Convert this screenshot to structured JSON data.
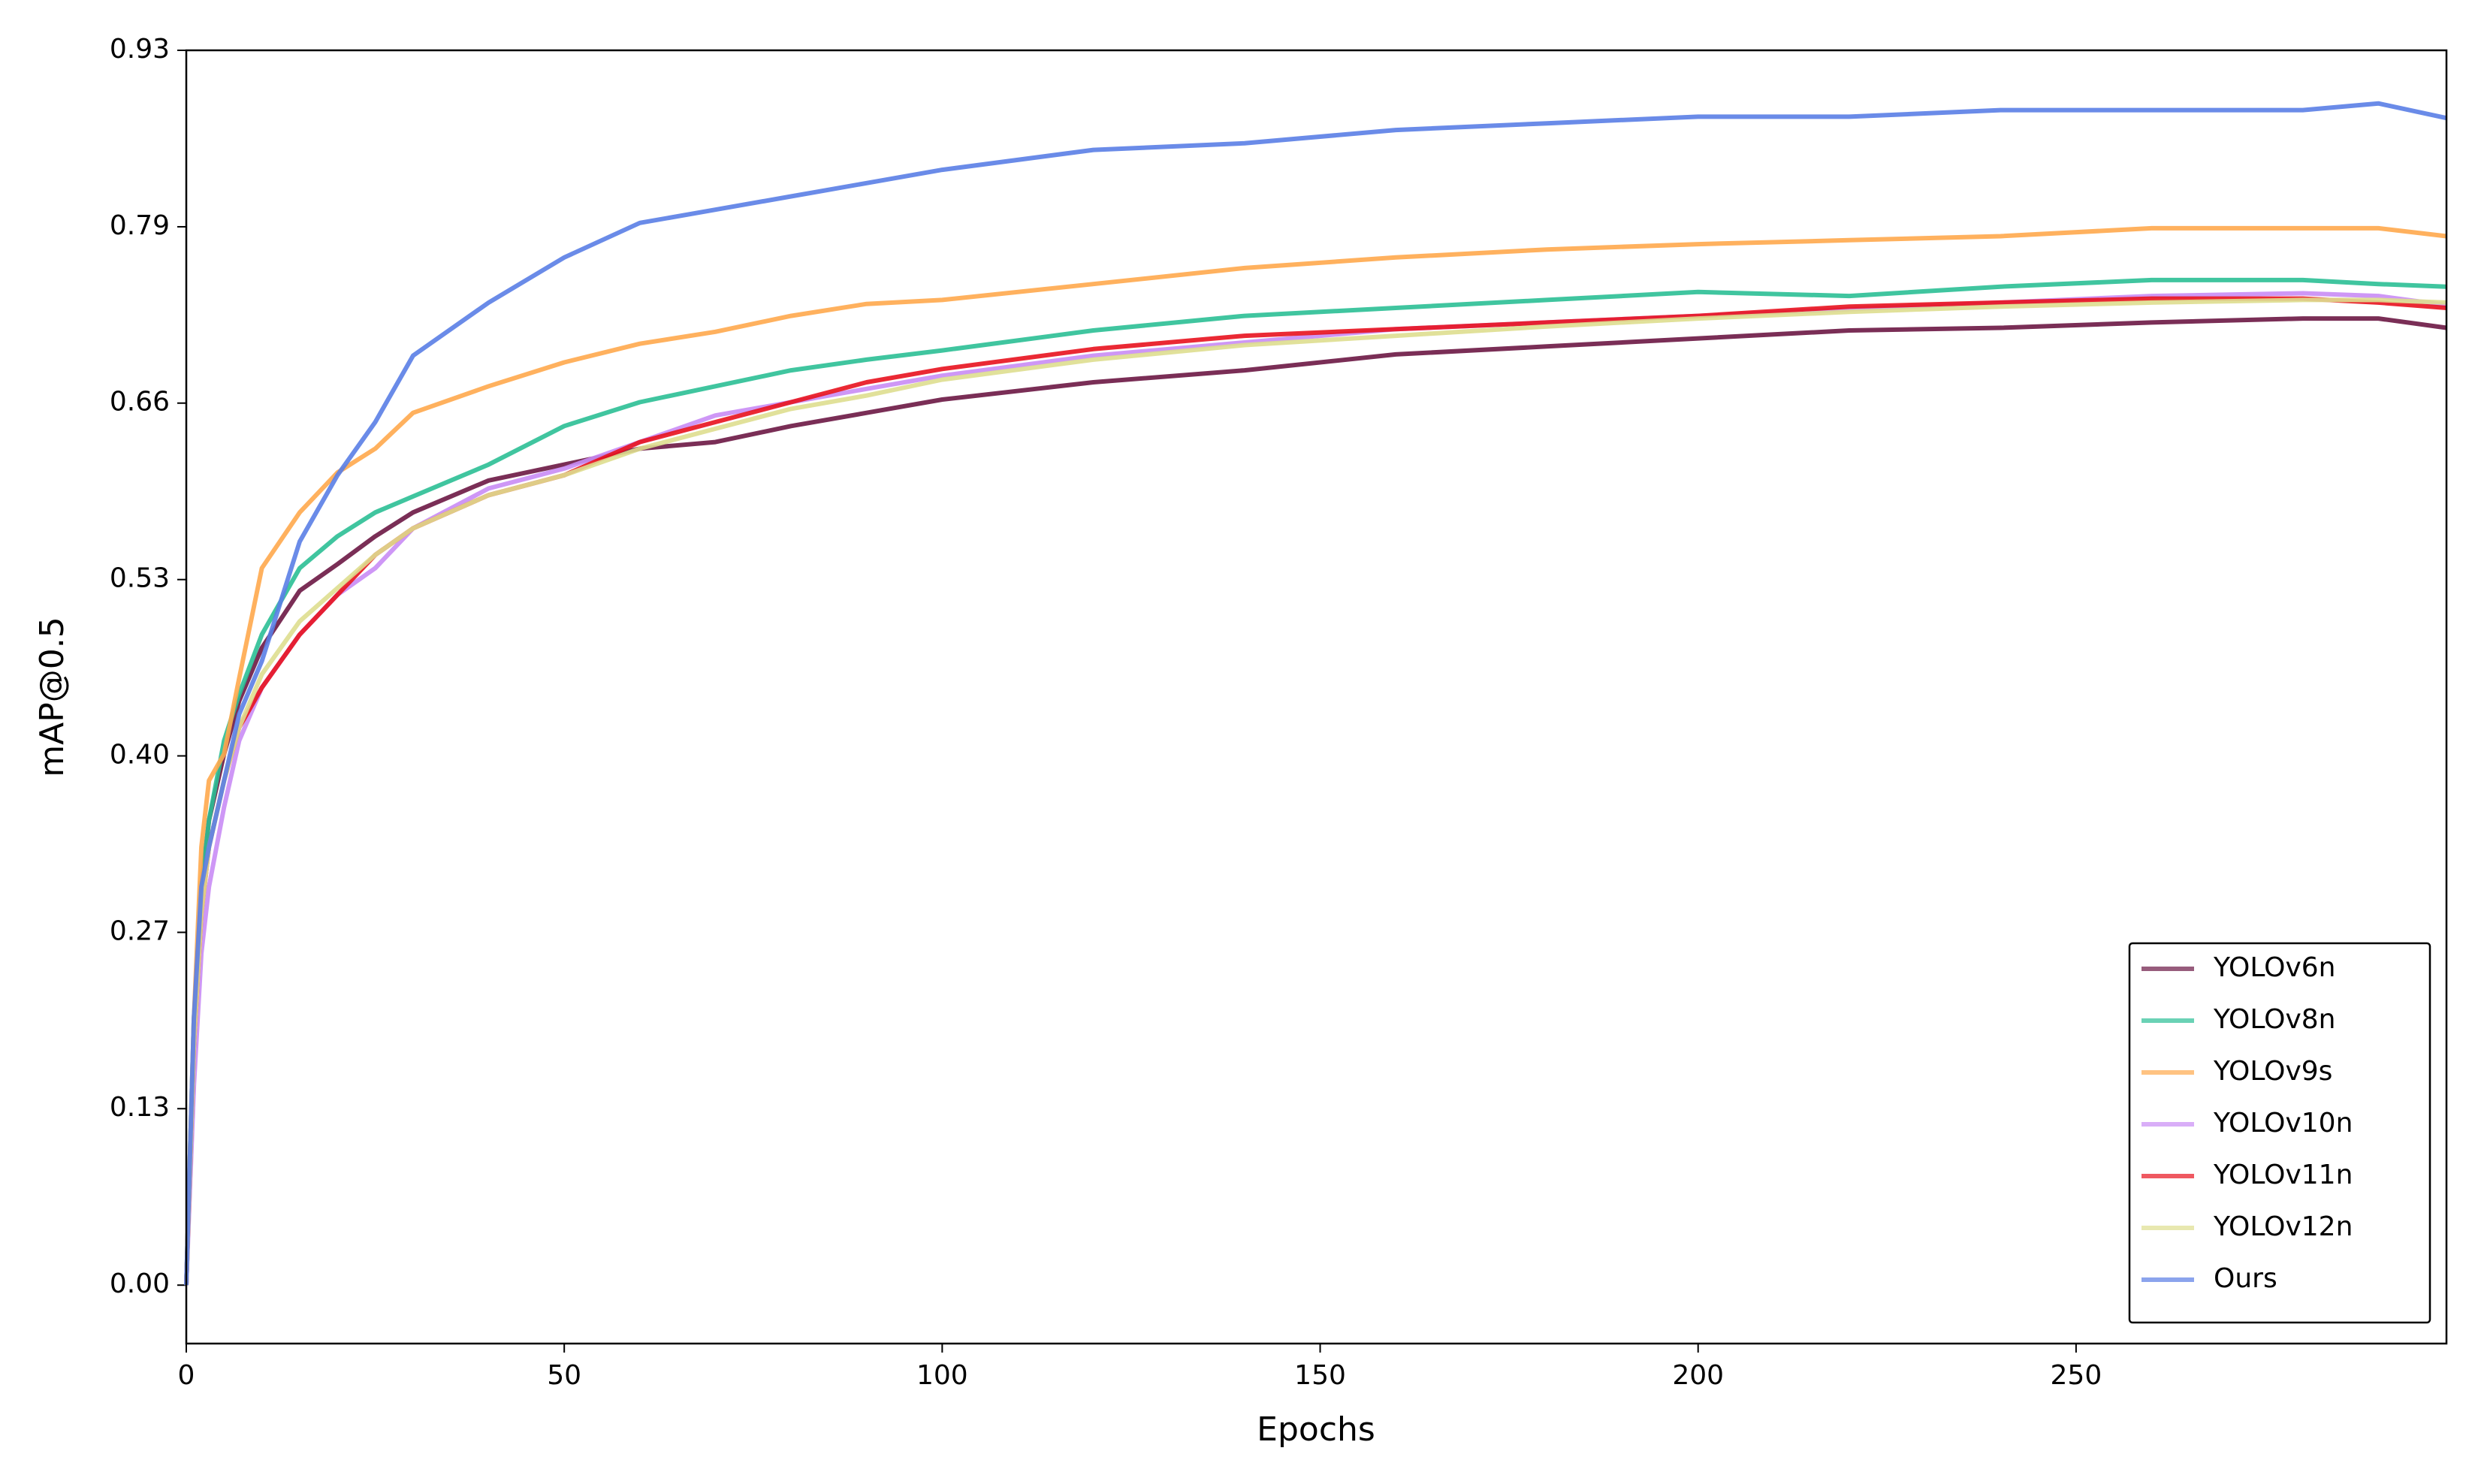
{
  "chart_data": {
    "type": "line",
    "x_label": "Epochs",
    "y_label": "mAP@0.5",
    "xlim": [
      0,
      299
    ],
    "ylim": [
      -0.044,
      0.93
    ],
    "xticks": [
      0,
      50,
      100,
      150,
      200,
      250
    ],
    "yticks": [
      {
        "value": 0,
        "label": "0.00"
      },
      {
        "value": 0.1329,
        "label": "0.13"
      },
      {
        "value": 0.2657,
        "label": "0.27"
      },
      {
        "value": 0.3986,
        "label": "0.40"
      },
      {
        "value": 0.5314,
        "label": "0.53"
      },
      {
        "value": 0.6643,
        "label": "0.66"
      },
      {
        "value": 0.7971,
        "label": "0.79"
      },
      {
        "value": 0.93,
        "label": "0.93"
      }
    ],
    "grid": false,
    "legend": "lower right",
    "x": [
      0,
      1,
      2,
      3,
      5,
      7,
      10,
      15,
      20,
      25,
      30,
      40,
      50,
      60,
      70,
      80,
      90,
      100,
      120,
      140,
      160,
      180,
      200,
      220,
      240,
      260,
      280,
      290,
      299
    ],
    "series": [
      {
        "name": "YOLOv6n",
        "color": "#6b1744",
        "values": [
          0,
          0.18,
          0.3,
          0.35,
          0.4,
          0.44,
          0.48,
          0.523,
          0.543,
          0.564,
          0.582,
          0.606,
          0.618,
          0.63,
          0.635,
          0.647,
          0.657,
          0.667,
          0.68,
          0.689,
          0.701,
          0.707,
          0.713,
          0.719,
          0.721,
          0.725,
          0.728,
          0.728,
          0.721
        ]
      },
      {
        "name": "YOLOv8n",
        "color": "#2bbf95",
        "values": [
          0,
          0.2,
          0.3,
          0.35,
          0.41,
          0.445,
          0.49,
          0.54,
          0.564,
          0.582,
          0.594,
          0.618,
          0.647,
          0.665,
          0.677,
          0.689,
          0.697,
          0.704,
          0.719,
          0.73,
          0.736,
          0.742,
          0.748,
          0.745,
          0.752,
          0.757,
          0.757,
          0.754,
          0.752
        ]
      },
      {
        "name": "YOLOv9s",
        "color": "#ffa94d",
        "values": [
          0,
          0.2,
          0.33,
          0.38,
          0.4,
          0.457,
          0.54,
          0.582,
          0.612,
          0.63,
          0.657,
          0.677,
          0.695,
          0.709,
          0.718,
          0.73,
          0.739,
          0.742,
          0.754,
          0.766,
          0.774,
          0.78,
          0.784,
          0.787,
          0.79,
          0.796,
          0.796,
          0.796,
          0.79
        ]
      },
      {
        "name": "YOLOv10n",
        "color": "#c98cf5",
        "values": [
          0,
          0.15,
          0.25,
          0.3,
          0.36,
          0.41,
          0.45,
          0.49,
          0.52,
          0.54,
          0.57,
          0.6,
          0.615,
          0.635,
          0.655,
          0.665,
          0.675,
          0.685,
          0.7,
          0.71,
          0.72,
          0.725,
          0.73,
          0.735,
          0.74,
          0.745,
          0.747,
          0.745,
          0.738
        ]
      },
      {
        "name": "YOLOv11n",
        "color": "#e8121e",
        "values": [
          0,
          0.18,
          0.28,
          0.33,
          0.38,
          0.42,
          0.45,
          0.49,
          0.52,
          0.55,
          0.57,
          0.595,
          0.61,
          0.635,
          0.65,
          0.665,
          0.68,
          0.69,
          0.705,
          0.715,
          0.72,
          0.725,
          0.73,
          0.737,
          0.74,
          0.743,
          0.743,
          0.74,
          0.736
        ]
      },
      {
        "name": "YOLOv12n",
        "color": "#dede8f",
        "values": [
          0,
          0.18,
          0.28,
          0.33,
          0.38,
          0.42,
          0.46,
          0.5,
          0.525,
          0.55,
          0.57,
          0.595,
          0.61,
          0.63,
          0.645,
          0.66,
          0.67,
          0.682,
          0.697,
          0.708,
          0.715,
          0.722,
          0.728,
          0.733,
          0.737,
          0.74,
          0.742,
          0.742,
          0.74
        ]
      },
      {
        "name": "Ours",
        "color": "#5a7ee6",
        "values": [
          0,
          0.2,
          0.3,
          0.33,
          0.38,
          0.43,
          0.47,
          0.56,
          0.61,
          0.65,
          0.7,
          0.74,
          0.774,
          0.8,
          0.81,
          0.82,
          0.83,
          0.84,
          0.855,
          0.86,
          0.87,
          0.875,
          0.88,
          0.88,
          0.885,
          0.885,
          0.885,
          0.89,
          0.879
        ]
      }
    ]
  }
}
